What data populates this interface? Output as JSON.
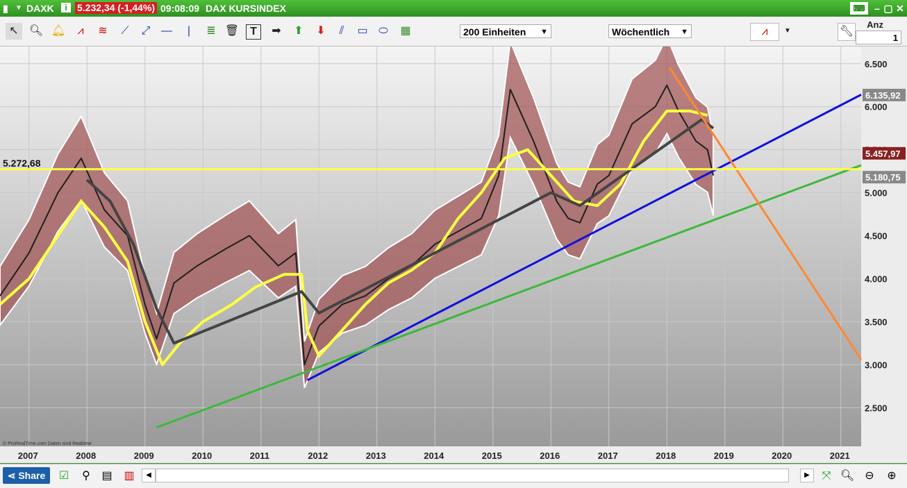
{
  "window": {
    "symbol": "DAXK",
    "price_change": "5.232,34 (-1,44%)",
    "time": "09:08:09",
    "instrument_name": "DAX KURSINDEX"
  },
  "toolbar": {
    "units_select": "200 Einheiten",
    "period_select": "Wöchentlich",
    "anz_label": "Anz",
    "anz_value": "1"
  },
  "chart_data": {
    "type": "line",
    "y_axis": {
      "ticks": [
        "6.500",
        "6.000",
        "5.500",
        "5.000",
        "4.500",
        "4.000",
        "3.500",
        "3.000",
        "2.500"
      ],
      "range": [
        2050,
        6700
      ]
    },
    "x_axis": {
      "ticks": [
        "2007",
        "2008",
        "2009",
        "2010",
        "2011",
        "2012",
        "2013",
        "2014",
        "2015",
        "2016",
        "2017",
        "2018",
        "2019",
        "2020",
        "2021"
      ],
      "range": [
        2006.5,
        2021.35
      ]
    },
    "price_labels": {
      "right_1": "6.135,92",
      "right_2": "5.457,97",
      "right_3": "5.180,75",
      "left_level": "5.272,68"
    },
    "series": [
      {
        "color": "#1f1f1f",
        "x": [
          2006.5,
          2007.0,
          2007.5,
          2007.9,
          2008.3,
          2008.7,
          2009.0,
          2009.2,
          2009.5,
          2009.9,
          2010.4,
          2010.8,
          2011.3,
          2011.6,
          2011.75,
          2012.0,
          2012.4,
          2012.8,
          2013.2,
          2013.6,
          2014.0,
          2014.4,
          2014.8,
          2015.1,
          2015.3,
          2015.5,
          2015.7,
          2016.1,
          2016.3,
          2016.5,
          2016.8,
          2017.0,
          2017.4,
          2017.8,
          2018.0,
          2018.2,
          2018.5,
          2018.7,
          2018.8
        ],
        "values": [
          3800,
          4300,
          5000,
          5400,
          4800,
          4500,
          3700,
          3300,
          3950,
          4150,
          4350,
          4500,
          4150,
          4300,
          3000,
          3450,
          3700,
          3800,
          4000,
          4150,
          4400,
          4550,
          4700,
          5200,
          6200,
          5900,
          5600,
          4900,
          4700,
          4650,
          5100,
          5200,
          5800,
          6000,
          6250,
          5950,
          5600,
          5500,
          5200
        ]
      },
      {
        "color": "#ffff44",
        "x": [
          2006.5,
          2007.0,
          2007.5,
          2007.9,
          2008.3,
          2008.7,
          2009.0,
          2009.3,
          2009.6,
          2010.0,
          2010.5,
          2010.9,
          2011.4,
          2011.7,
          2011.8,
          2012.0,
          2012.4,
          2012.8,
          2013.2,
          2013.6,
          2014.0,
          2014.4,
          2014.8,
          2015.2,
          2015.6,
          2016.0,
          2016.4,
          2016.8,
          2017.2,
          2017.6,
          2018.0,
          2018.4,
          2018.7
        ],
        "values": [
          3700,
          4000,
          4500,
          4900,
          4600,
          4200,
          3500,
          3000,
          3250,
          3500,
          3700,
          3900,
          4050,
          4050,
          3400,
          3100,
          3400,
          3700,
          3950,
          4100,
          4300,
          4700,
          5000,
          5400,
          5500,
          5200,
          4900,
          4850,
          5100,
          5600,
          5950,
          5950,
          5900
        ]
      },
      {
        "color": "#444444",
        "x": [
          2008.0,
          2008.4,
          2008.8,
          2009.2,
          2009.5,
          2011.7,
          2012.0,
          2016.0,
          2016.5,
          2018.6,
          2018.8
        ],
        "values": [
          5150,
          4900,
          4400,
          3650,
          3250,
          3850,
          3600,
          5000,
          4850,
          5850,
          5750
        ]
      }
    ],
    "bands": {
      "color": "#a05050"
    },
    "trendlines": [
      {
        "color": "#1010dd",
        "x": [
          2011.8,
          2021.35
        ],
        "values": [
          2820,
          6140
        ]
      },
      {
        "color": "#3cb83c",
        "x": [
          2009.2,
          2021.35
        ],
        "values": [
          2270,
          5320
        ]
      },
      {
        "color": "#ff8833",
        "x": [
          2018.05,
          2021.35
        ],
        "values": [
          6450,
          3060
        ]
      },
      {
        "color": "#ffff44",
        "x": [
          2006.5,
          2021.35
        ],
        "values": [
          5272.68,
          5272.68
        ]
      }
    ],
    "watermark": "© ProRealTime.com  Daten sind Realtime"
  },
  "bottom": {
    "share_label": "Share"
  }
}
